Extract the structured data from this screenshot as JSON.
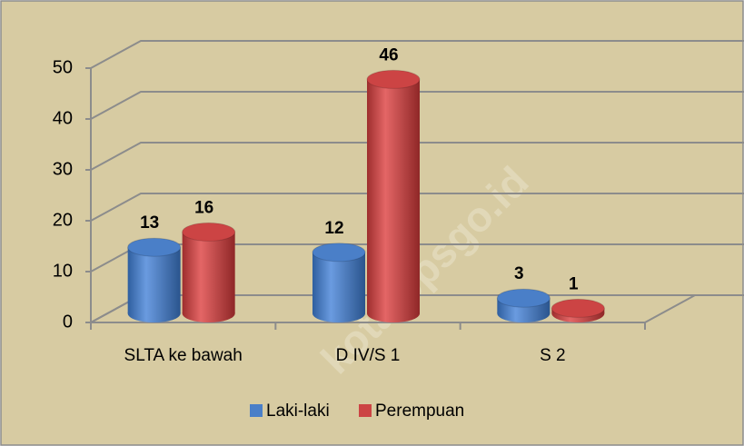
{
  "chart_data": {
    "type": "bar3d",
    "categories": [
      "SLTA ke bawah",
      "D IV/S 1",
      "S 2"
    ],
    "series": [
      {
        "name": "Laki-laki",
        "color": "#4a7fc8",
        "values": [
          13,
          12,
          3
        ]
      },
      {
        "name": "Perempuan",
        "color": "#cc4444",
        "values": [
          16,
          46,
          1
        ]
      }
    ],
    "ylim": [
      0,
      50
    ],
    "yticks": [
      0,
      10,
      20,
      30,
      40,
      50
    ],
    "grid": true,
    "legend": "bottom",
    "watermark": "kota.bpsgo.id"
  }
}
